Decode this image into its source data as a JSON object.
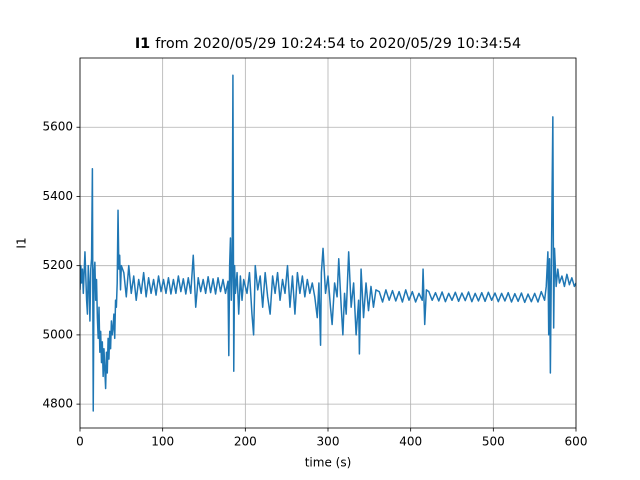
{
  "chart_data": {
    "type": "line",
    "title": [
      "I1",
      "from 2020/05/29 10:24:54 to 2020/05/29 10:34:54"
    ],
    "xlabel": "time (s)",
    "ylabel": "I1",
    "xlim": [
      0,
      600
    ],
    "xticks": [
      0,
      100,
      200,
      300,
      400,
      500,
      600
    ],
    "ylim": [
      4731,
      5800
    ],
    "yticks": [
      4800,
      5000,
      5200,
      5400,
      5600
    ],
    "grid": true,
    "series": [
      {
        "name": "I1",
        "color": "#1f77b4",
        "x": [
          0,
          1,
          2,
          3,
          4,
          5,
          6,
          7,
          8,
          9,
          10,
          11,
          12,
          13,
          14,
          15,
          16,
          17,
          18,
          19,
          20,
          21,
          22,
          23,
          24,
          25,
          26,
          27,
          28,
          29,
          30,
          31,
          32,
          33,
          34,
          35,
          36,
          37,
          38,
          39,
          40,
          41,
          42,
          43,
          44,
          45,
          46,
          47,
          48,
          49,
          50,
          53,
          56,
          59,
          62,
          65,
          68,
          71,
          74,
          77,
          80,
          83,
          86,
          89,
          92,
          95,
          98,
          101,
          104,
          107,
          110,
          113,
          116,
          119,
          122,
          125,
          128,
          131,
          134,
          137,
          140,
          143,
          146,
          149,
          152,
          155,
          158,
          161,
          164,
          167,
          170,
          173,
          176,
          179,
          180,
          181,
          182,
          183,
          184,
          185,
          186,
          187,
          188,
          190,
          192,
          194,
          196,
          198,
          202,
          205,
          208,
          210,
          212,
          215,
          218,
          221,
          224,
          227,
          230,
          233,
          236,
          239,
          242,
          245,
          248,
          251,
          254,
          257,
          260,
          263,
          266,
          269,
          272,
          275,
          278,
          281,
          284,
          287,
          289,
          291,
          292,
          294,
          297,
          300,
          303,
          305,
          308,
          311,
          313,
          316,
          318,
          320,
          322,
          325,
          328,
          331,
          334,
          337,
          338,
          340,
          343,
          346,
          349,
          352,
          355,
          358,
          362,
          366,
          370,
          374,
          378,
          382,
          386,
          390,
          394,
          398,
          402,
          406,
          410,
          414,
          415,
          417,
          419,
          422,
          426,
          430,
          434,
          438,
          442,
          446,
          450,
          454,
          458,
          462,
          466,
          470,
          474,
          478,
          482,
          486,
          490,
          494,
          498,
          502,
          506,
          510,
          514,
          518,
          522,
          526,
          530,
          534,
          538,
          542,
          546,
          550,
          554,
          558,
          562,
          564,
          566,
          567,
          568,
          569,
          570,
          571,
          572,
          573,
          574,
          576,
          578,
          580,
          583,
          586,
          589,
          592,
          595,
          598,
          600
        ],
        "values": [
          5130,
          5200,
          5150,
          5190,
          5120,
          5180,
          5240,
          5170,
          5100,
          5060,
          5200,
          5150,
          5040,
          5190,
          5220,
          5480,
          4780,
          5180,
          5210,
          5100,
          5160,
          5050,
          4990,
          5080,
          4950,
          5010,
          4920,
          4980,
          4880,
          4960,
          4900,
          4845,
          4950,
          4890,
          4990,
          4930,
          5010,
          4960,
          5040,
          5000,
          5020,
          5060,
          4990,
          5100,
          5080,
          5150,
          5360,
          5190,
          5230,
          5130,
          5200,
          5180,
          5110,
          5200,
          5120,
          5170,
          5100,
          5160,
          5120,
          5180,
          5110,
          5165,
          5120,
          5160,
          5115,
          5170,
          5125,
          5160,
          5120,
          5165,
          5118,
          5160,
          5120,
          5170,
          5125,
          5162,
          5118,
          5165,
          5120,
          5230,
          5080,
          5165,
          5125,
          5160,
          5120,
          5168,
          5122,
          5162,
          5118,
          5165,
          5125,
          5160,
          5120,
          5155,
          4940,
          5200,
          5280,
          5100,
          5180,
          5750,
          4895,
          5200,
          5120,
          5180,
          5060,
          5170,
          5100,
          5160,
          5120,
          5180,
          5060,
          5000,
          5200,
          5130,
          5170,
          5080,
          5180,
          5110,
          5060,
          5170,
          5120,
          5180,
          5100,
          5160,
          5120,
          5200,
          5080,
          5170,
          5060,
          5180,
          5120,
          5170,
          5110,
          5160,
          5120,
          5150,
          5110,
          5050,
          5150,
          4970,
          5180,
          5250,
          5120,
          5170,
          5080,
          5030,
          5150,
          5110,
          5220,
          5080,
          5000,
          5120,
          5060,
          5240,
          5080,
          5150,
          5000,
          5100,
          4945,
          5190,
          5050,
          5150,
          5070,
          5140,
          5080,
          5130,
          5125,
          5095,
          5130,
          5100,
          5128,
          5098,
          5125,
          5095,
          5130,
          5100,
          5125,
          5095,
          5120,
          5100,
          5190,
          5030,
          5130,
          5125,
          5100,
          5122,
          5098,
          5124,
          5096,
          5120,
          5100,
          5123,
          5097,
          5121,
          5099,
          5124,
          5096,
          5120,
          5098,
          5122,
          5097,
          5123,
          5100,
          5121,
          5096,
          5120,
          5098,
          5122,
          5095,
          5119,
          5097,
          5121,
          5094,
          5118,
          5096,
          5120,
          5095,
          5125,
          5100,
          5140,
          5240,
          5000,
          5220,
          4890,
          5150,
          5400,
          5630,
          5020,
          5250,
          5140,
          5190,
          5150,
          5170,
          5140,
          5175,
          5145,
          5165,
          5140,
          5150
        ]
      }
    ]
  }
}
